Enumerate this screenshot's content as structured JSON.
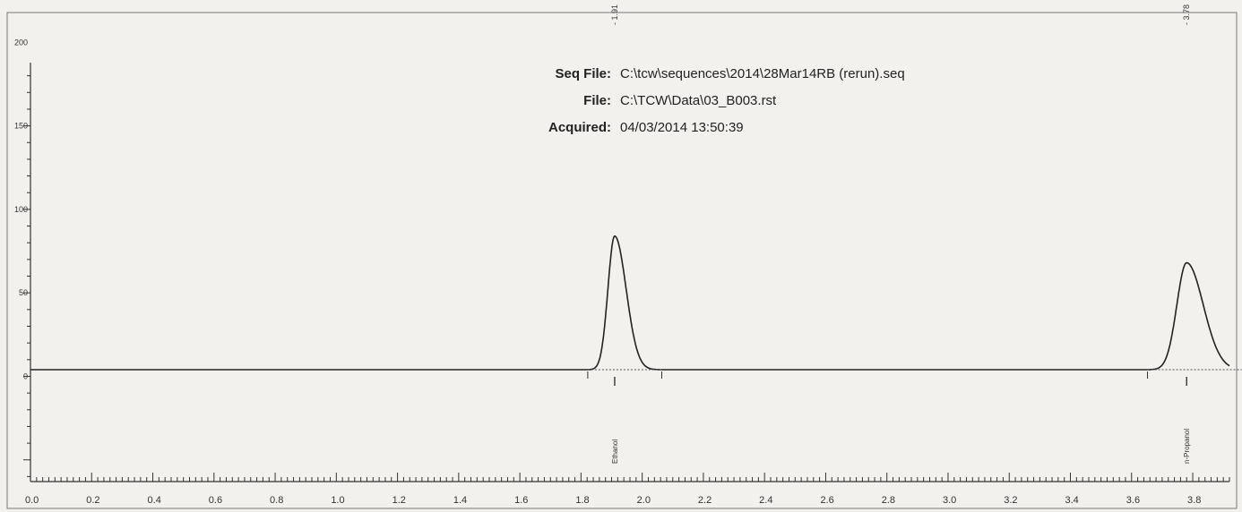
{
  "header": {
    "seq_label": "Seq File:",
    "seq_value": "C:\\tcw\\sequences\\2014\\28Mar14RB (rerun).seq",
    "file_label": "File:",
    "file_value": "C:\\TCW\\Data\\03_B003.rst",
    "acquired_label": "Acquired:",
    "acquired_value": "04/03/2014 13:50:39"
  },
  "chart_data": {
    "type": "line",
    "x_ticks": [
      "0.0",
      "0.2",
      "0.4",
      "0.6",
      "0.8",
      "1.0",
      "1.2",
      "1.4",
      "1.6",
      "1.8",
      "2.0",
      "2.2",
      "2.4",
      "2.6",
      "2.8",
      "3.0",
      "3.2",
      "3.4",
      "3.6",
      "3.8"
    ],
    "y_ticks": [
      "0",
      "50",
      "100",
      "150",
      "200"
    ],
    "xlim": [
      0.0,
      3.92
    ],
    "ylim": [
      -63,
      205
    ],
    "baseline": 4,
    "peaks": [
      {
        "name": "Ethanol",
        "rt_label": "1.91",
        "rt": 1.91,
        "height": 80,
        "width": 0.022
      },
      {
        "name": "n-Propanol",
        "rt_label": "3.78",
        "rt": 3.78,
        "height": 64,
        "width": 0.032
      }
    ],
    "line_color": "#222222",
    "background": "#f2f1ee"
  }
}
